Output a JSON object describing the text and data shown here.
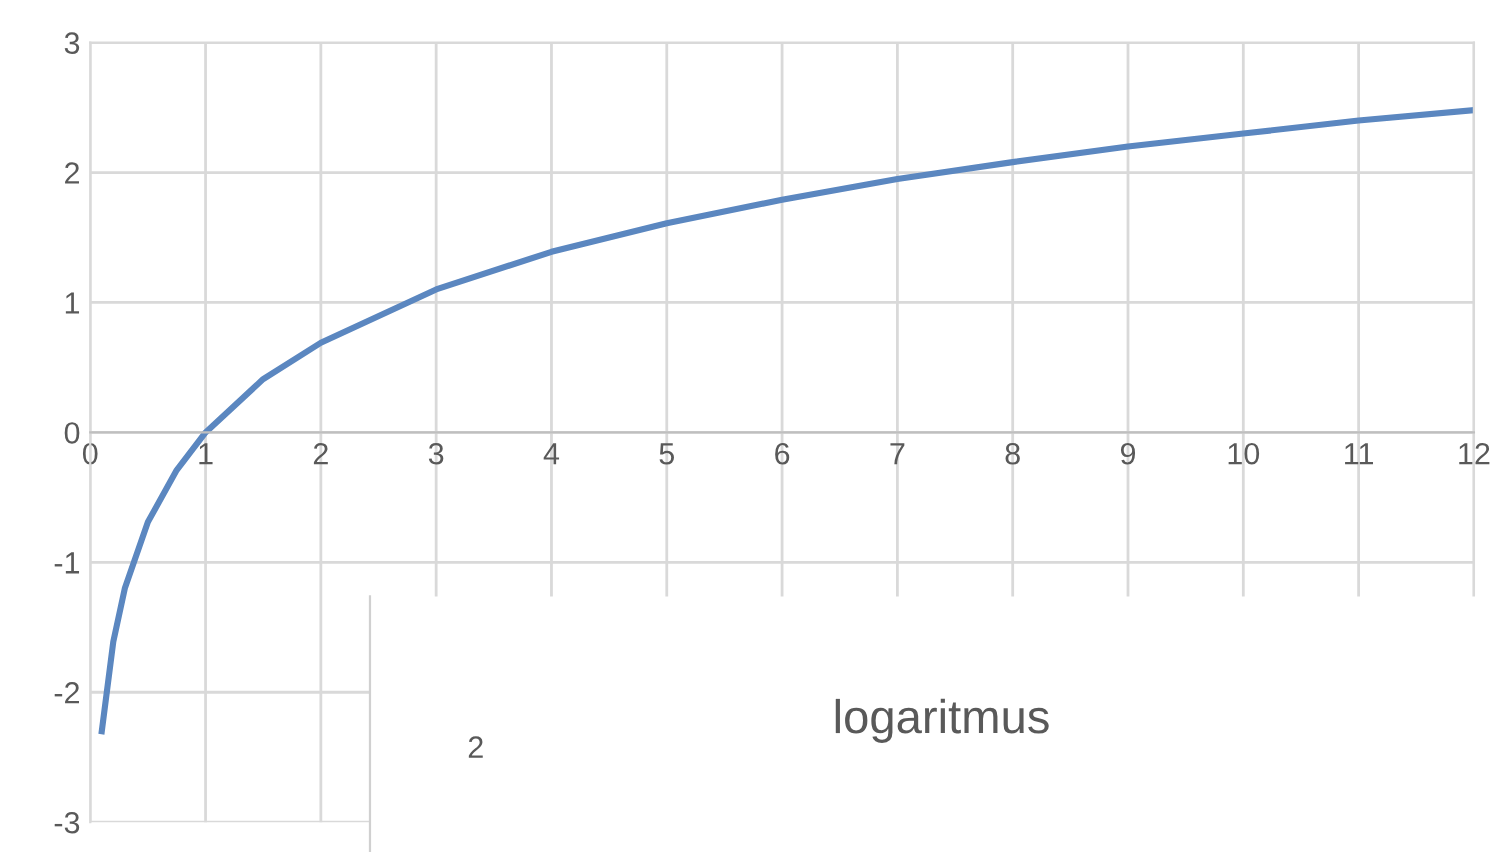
{
  "chart_data": [
    {
      "type": "line",
      "x": [
        0.1,
        0.2,
        0.3,
        0.5,
        0.75,
        1,
        1.5,
        2,
        3,
        4,
        5,
        6,
        7,
        8,
        9,
        10,
        11,
        12
      ],
      "series": [
        {
          "color": "#5b87c0",
          "values": [
            -2.3,
            -1.61,
            -1.2,
            -0.69,
            -0.29,
            0,
            0.41,
            0.69,
            1.1,
            1.39,
            1.61,
            1.79,
            1.95,
            2.08,
            2.2,
            2.3,
            2.4,
            2.48
          ]
        }
      ],
      "xlim": [
        0,
        12
      ],
      "xticks": [
        0,
        1,
        2,
        3,
        4,
        5,
        6,
        7,
        8,
        9,
        10,
        11,
        12
      ],
      "ylim": [
        -3,
        3
      ],
      "yticks": [
        -3,
        -2,
        -1,
        0,
        1,
        2,
        3
      ],
      "grid": true,
      "marker": "none",
      "line_style": "solid"
    },
    {
      "type": "other",
      "title": "logaritmus",
      "annotations": [
        "2"
      ]
    }
  ]
}
